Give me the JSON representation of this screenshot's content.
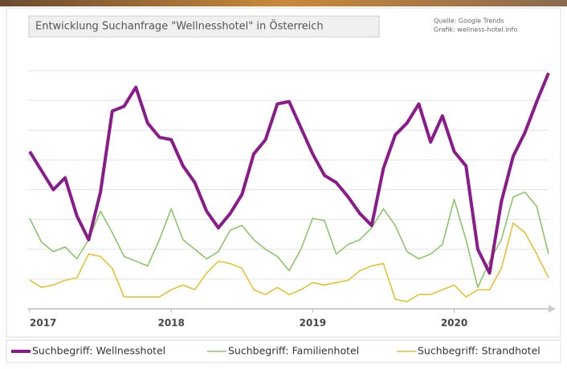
{
  "chart_data": {
    "type": "line",
    "title": "Entwicklung Suchanfrage \"Wellnesshotel\" in Österreich",
    "source": "Quelle: Google Trends",
    "credit": "Grafik: wellness-hotel.info",
    "categories": [
      "2017",
      null,
      null,
      null,
      null,
      null,
      null,
      null,
      null,
      null,
      null,
      null,
      "2018",
      null,
      null,
      null,
      null,
      null,
      null,
      null,
      null,
      null,
      null,
      null,
      "2019",
      null,
      null,
      null,
      null,
      null,
      null,
      null,
      null,
      null,
      null,
      null,
      "2020",
      null,
      null,
      null,
      null,
      null,
      null,
      null,
      null
    ],
    "series": [
      {
        "name": "Suchbegriff: Wellnesshotel",
        "color": "#8b1a8b",
        "width": 4,
        "values": [
          66,
          58,
          50,
          55,
          39,
          29,
          49,
          83,
          85,
          93,
          78,
          72,
          71,
          60,
          53,
          41,
          34,
          40,
          48,
          65,
          71,
          86,
          87,
          76,
          65,
          56,
          53,
          47,
          40,
          35,
          59,
          73,
          78,
          86,
          70,
          81,
          66,
          60,
          25,
          15,
          45,
          64,
          74,
          87,
          99
        ]
      },
      {
        "name": "Suchbegriff: Familienhotel",
        "color": "#8cc56a",
        "width": 1.6,
        "values": [
          38,
          28,
          24,
          26,
          21,
          29,
          41,
          32,
          22,
          20,
          18,
          29,
          42,
          29,
          25,
          21,
          24,
          33,
          35,
          29,
          25,
          22,
          16,
          25,
          38,
          37,
          23,
          27,
          29,
          34,
          42,
          35,
          24,
          21,
          23,
          27,
          46,
          29,
          9,
          20,
          29,
          47,
          49,
          43,
          23
        ]
      },
      {
        "name": "Suchbegriff: Strandhotel",
        "color": "#e8c032",
        "width": 1.6,
        "values": [
          12,
          9,
          10,
          12,
          13,
          23,
          22,
          17,
          5,
          5,
          5,
          5,
          8,
          10,
          8,
          15,
          20,
          19,
          17,
          8,
          6,
          9,
          6,
          8,
          11,
          10,
          11,
          12,
          16,
          18,
          19,
          4,
          3,
          6,
          6,
          8,
          10,
          5,
          8,
          8,
          17,
          36,
          32,
          23,
          13
        ]
      }
    ],
    "ylim": [
      0,
      100
    ],
    "yticks": [
      12.5,
      25,
      37.5,
      50,
      62.5,
      75,
      87.5,
      100
    ],
    "grid": true
  }
}
